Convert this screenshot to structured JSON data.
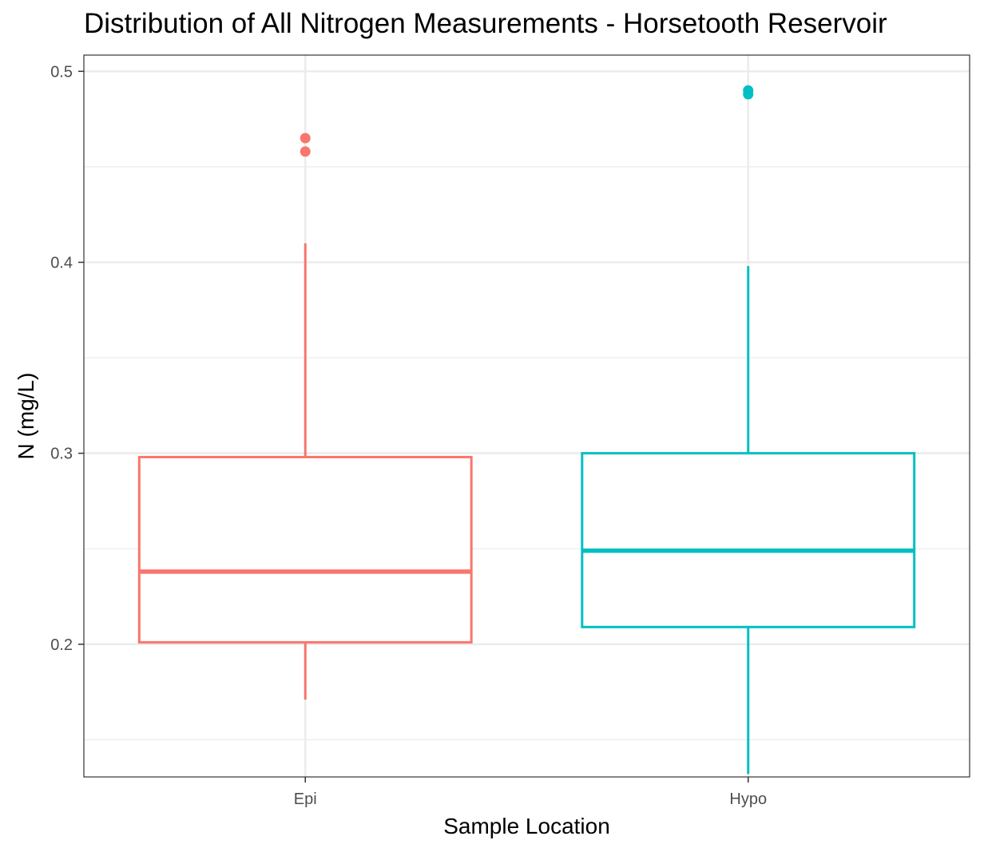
{
  "chart_data": {
    "type": "box",
    "title": "Distribution of All Nitrogen Measurements - Horsetooth Reservoir",
    "xlabel": "Sample Location",
    "ylabel": "N (mg/L)",
    "categories": [
      "Epi",
      "Hypo"
    ],
    "ylim": [
      0.1305,
      0.5085
    ],
    "yticks": [
      0.2,
      0.3,
      0.4,
      0.5
    ],
    "ytick_labels": [
      "0.2",
      "0.3",
      "0.4",
      "0.5"
    ],
    "grid": true,
    "legend": "none",
    "boxes": [
      {
        "category": "Epi",
        "color": "#F8766D",
        "whisker_low": 0.171,
        "q1": 0.201,
        "median": 0.238,
        "q3": 0.298,
        "whisker_high": 0.41,
        "outliers": [
          0.458,
          0.465
        ]
      },
      {
        "category": "Hypo",
        "color": "#00BFC4",
        "whisker_low": 0.132,
        "q1": 0.209,
        "median": 0.249,
        "q3": 0.3,
        "whisker_high": 0.398,
        "outliers": [
          0.488,
          0.49
        ]
      }
    ]
  }
}
